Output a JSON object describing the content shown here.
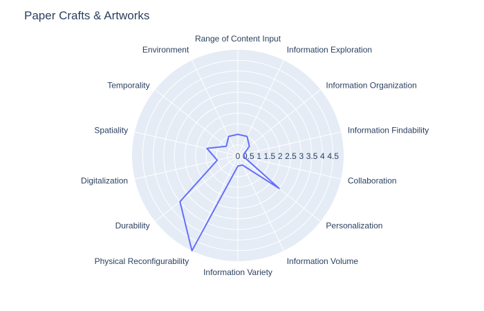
{
  "chart_data": {
    "type": "radar",
    "title": "Paper Crafts & Artworks",
    "categories": [
      "Range of Content Input",
      "Information Exploration",
      "Information Organization",
      "Information Findability",
      "Collaboration",
      "Personalization",
      "Information Volume",
      "Information Variety",
      "Physical Reconfigurability",
      "Durability",
      "Digitalization",
      "Spatiality",
      "Temporality",
      "Environment"
    ],
    "radial_ticks": [
      "0",
      "0.5",
      "1",
      "1.5",
      "2",
      "2.5",
      "3",
      "3.5",
      "4",
      "4.5"
    ],
    "radial_range": [
      0,
      5
    ],
    "series": [
      {
        "values": [
          1.0,
          1.0,
          0.7,
          0.3,
          0.3,
          2.5,
          0.5,
          0.5,
          5.0,
          3.5,
          1.0,
          1.5,
          0.7,
          1.0
        ],
        "color": "#636efa"
      }
    ],
    "background_color": "#e5ecf6",
    "grid": true
  }
}
